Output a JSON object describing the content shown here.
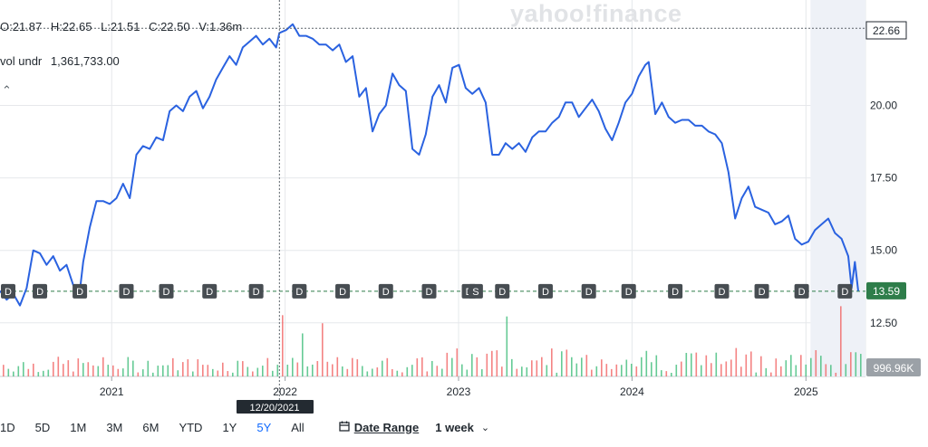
{
  "watermark": "yahoo!finance",
  "ohlc": {
    "open": "O:21.87",
    "high": "H:22.65",
    "low": "L:21.51",
    "close": "C:22.50",
    "volume": "V:1.36m"
  },
  "volume_label": {
    "name": "vol undr",
    "value": "1,361,733.00"
  },
  "collapse_icon": "caret-up-icon",
  "toolbar": {
    "ranges": [
      "1D",
      "5D",
      "1M",
      "3M",
      "6M",
      "YTD",
      "1Y",
      "5Y",
      "All"
    ],
    "active_range": "5Y",
    "date_range_label": "Date Range",
    "interval_label": "1 week",
    "colors": {
      "active": "#0f69ff"
    }
  },
  "crosshair": {
    "date_label": "12/20/2021",
    "price_label": "22.66",
    "price": 22.66,
    "date": "2021-12-20"
  },
  "current_price": {
    "label": "13.59",
    "value": 13.59
  },
  "volume_axis_label": "996.96K",
  "chart_data": {
    "type": "line",
    "y_ticks": [
      "12.50",
      "15.00",
      "17.50",
      "20.00"
    ],
    "y_tick_values": [
      12.5,
      15,
      17.5,
      20
    ],
    "ylim": [
      11.9,
      23.2
    ],
    "x_ticks": [
      "2021",
      "2022",
      "2023",
      "2024",
      "2025"
    ],
    "x_tick_dates": [
      "2021-01-01",
      "2022-01-01",
      "2023-01-01",
      "2024-01-01",
      "2025-01-01"
    ],
    "xlim": [
      "2020-05-11",
      "2025-04-21"
    ],
    "grid": true,
    "colors": {
      "line": "#2a62e0",
      "up": "#33b872",
      "down": "#f05a5a",
      "shade": "#eef1f7",
      "marker_bg": "#474d52",
      "price_badge": "#2e7d4a"
    },
    "series": [
      {
        "points": [
          [
            "2020-05-11",
            13.6
          ],
          [
            "2020-05-25",
            13.3
          ],
          [
            "2020-06-08",
            13.5
          ],
          [
            "2020-06-22",
            13.1
          ],
          [
            "2020-07-06",
            13.7
          ],
          [
            "2020-07-20",
            15.0
          ],
          [
            "2020-08-03",
            14.9
          ],
          [
            "2020-08-17",
            14.5
          ],
          [
            "2020-08-31",
            14.8
          ],
          [
            "2020-09-14",
            14.3
          ],
          [
            "2020-09-28",
            14.5
          ],
          [
            "2020-10-12",
            13.8
          ],
          [
            "2020-10-26",
            13.6
          ],
          [
            "2020-11-02",
            14.6
          ],
          [
            "2020-11-16",
            15.8
          ],
          [
            "2020-11-30",
            16.7
          ],
          [
            "2020-12-14",
            16.7
          ],
          [
            "2020-12-28",
            16.6
          ],
          [
            "2021-01-11",
            16.8
          ],
          [
            "2021-01-25",
            17.3
          ],
          [
            "2021-02-08",
            16.8
          ],
          [
            "2021-02-22",
            18.3
          ],
          [
            "2021-03-08",
            18.6
          ],
          [
            "2021-03-22",
            18.5
          ],
          [
            "2021-04-05",
            18.9
          ],
          [
            "2021-04-19",
            18.8
          ],
          [
            "2021-05-03",
            19.8
          ],
          [
            "2021-05-17",
            20.0
          ],
          [
            "2021-05-31",
            19.8
          ],
          [
            "2021-06-14",
            20.3
          ],
          [
            "2021-06-28",
            20.5
          ],
          [
            "2021-07-12",
            19.9
          ],
          [
            "2021-07-26",
            20.3
          ],
          [
            "2021-08-09",
            20.9
          ],
          [
            "2021-08-23",
            21.3
          ],
          [
            "2021-09-06",
            21.7
          ],
          [
            "2021-09-20",
            21.4
          ],
          [
            "2021-10-04",
            22.0
          ],
          [
            "2021-10-18",
            22.2
          ],
          [
            "2021-11-01",
            22.4
          ],
          [
            "2021-11-15",
            22.1
          ],
          [
            "2021-11-29",
            22.3
          ],
          [
            "2021-12-13",
            22.0
          ],
          [
            "2021-12-20",
            22.5
          ],
          [
            "2022-01-03",
            22.6
          ],
          [
            "2022-01-17",
            22.8
          ],
          [
            "2022-01-31",
            22.4
          ],
          [
            "2022-02-14",
            22.4
          ],
          [
            "2022-02-28",
            22.3
          ],
          [
            "2022-03-14",
            22.1
          ],
          [
            "2022-03-28",
            22.1
          ],
          [
            "2022-04-11",
            21.9
          ],
          [
            "2022-04-25",
            22.1
          ],
          [
            "2022-05-09",
            21.5
          ],
          [
            "2022-05-23",
            21.7
          ],
          [
            "2022-06-06",
            20.3
          ],
          [
            "2022-06-20",
            20.6
          ],
          [
            "2022-07-04",
            19.1
          ],
          [
            "2022-07-18",
            19.7
          ],
          [
            "2022-08-01",
            20.0
          ],
          [
            "2022-08-15",
            21.1
          ],
          [
            "2022-08-29",
            20.7
          ],
          [
            "2022-09-12",
            20.5
          ],
          [
            "2022-09-26",
            18.5
          ],
          [
            "2022-10-10",
            18.3
          ],
          [
            "2022-10-24",
            19.0
          ],
          [
            "2022-11-07",
            20.3
          ],
          [
            "2022-11-21",
            20.7
          ],
          [
            "2022-12-05",
            20.1
          ],
          [
            "2022-12-19",
            21.3
          ],
          [
            "2023-01-02",
            21.4
          ],
          [
            "2023-01-16",
            20.6
          ],
          [
            "2023-01-30",
            20.4
          ],
          [
            "2023-02-13",
            20.6
          ],
          [
            "2023-02-27",
            20.1
          ],
          [
            "2023-03-13",
            18.3
          ],
          [
            "2023-03-27",
            18.3
          ],
          [
            "2023-04-10",
            18.7
          ],
          [
            "2023-04-24",
            18.5
          ],
          [
            "2023-05-08",
            18.7
          ],
          [
            "2023-05-22",
            18.4
          ],
          [
            "2023-06-05",
            18.9
          ],
          [
            "2023-06-19",
            19.1
          ],
          [
            "2023-07-03",
            19.1
          ],
          [
            "2023-07-17",
            19.4
          ],
          [
            "2023-07-31",
            19.6
          ],
          [
            "2023-08-14",
            20.1
          ],
          [
            "2023-08-28",
            20.1
          ],
          [
            "2023-09-11",
            19.6
          ],
          [
            "2023-09-25",
            19.9
          ],
          [
            "2023-10-09",
            20.2
          ],
          [
            "2023-10-23",
            19.8
          ],
          [
            "2023-11-06",
            19.2
          ],
          [
            "2023-11-20",
            18.8
          ],
          [
            "2023-12-04",
            19.4
          ],
          [
            "2023-12-18",
            20.1
          ],
          [
            "2024-01-01",
            20.4
          ],
          [
            "2024-01-15",
            21.0
          ],
          [
            "2024-01-29",
            21.4
          ],
          [
            "2024-02-05",
            21.5
          ],
          [
            "2024-02-19",
            19.7
          ],
          [
            "2024-03-04",
            20.1
          ],
          [
            "2024-03-18",
            19.6
          ],
          [
            "2024-04-01",
            19.4
          ],
          [
            "2024-04-15",
            19.5
          ],
          [
            "2024-04-29",
            19.5
          ],
          [
            "2024-05-13",
            19.3
          ],
          [
            "2024-05-27",
            19.3
          ],
          [
            "2024-06-10",
            19.1
          ],
          [
            "2024-06-24",
            19.0
          ],
          [
            "2024-07-08",
            18.7
          ],
          [
            "2024-07-22",
            17.7
          ],
          [
            "2024-08-05",
            16.1
          ],
          [
            "2024-08-19",
            16.8
          ],
          [
            "2024-09-02",
            17.2
          ],
          [
            "2024-09-16",
            16.5
          ],
          [
            "2024-09-30",
            16.4
          ],
          [
            "2024-10-14",
            16.3
          ],
          [
            "2024-10-28",
            15.9
          ],
          [
            "2024-11-11",
            16.0
          ],
          [
            "2024-11-25",
            16.2
          ],
          [
            "2024-12-09",
            15.4
          ],
          [
            "2024-12-23",
            15.2
          ],
          [
            "2025-01-06",
            15.3
          ],
          [
            "2025-01-20",
            15.7
          ],
          [
            "2025-02-03",
            15.9
          ],
          [
            "2025-02-17",
            16.1
          ],
          [
            "2025-03-03",
            15.6
          ],
          [
            "2025-03-17",
            15.4
          ],
          [
            "2025-03-31",
            14.8
          ],
          [
            "2025-04-07",
            13.7
          ],
          [
            "2025-04-14",
            14.6
          ],
          [
            "2025-04-21",
            13.6
          ]
        ]
      }
    ],
    "event_markers": [
      {
        "date": "2020-05-11",
        "label": "D"
      },
      {
        "date": "2020-08-03",
        "label": "D"
      },
      {
        "date": "2020-10-26",
        "label": "D"
      },
      {
        "date": "2021-02-01",
        "label": "D"
      },
      {
        "date": "2021-04-26",
        "label": "D"
      },
      {
        "date": "2021-07-26",
        "label": "D"
      },
      {
        "date": "2021-11-01",
        "label": "D"
      },
      {
        "date": "2022-01-31",
        "label": "D"
      },
      {
        "date": "2022-05-02",
        "label": "D"
      },
      {
        "date": "2022-08-01",
        "label": "D"
      },
      {
        "date": "2022-10-31",
        "label": "D"
      },
      {
        "date": "2023-01-23",
        "label": "D"
      },
      {
        "date": "2023-02-06",
        "label": "S"
      },
      {
        "date": "2023-04-03",
        "label": "D"
      },
      {
        "date": "2023-07-03",
        "label": "D"
      },
      {
        "date": "2023-10-02",
        "label": "D"
      },
      {
        "date": "2023-12-25",
        "label": "D"
      },
      {
        "date": "2024-04-01",
        "label": "D"
      },
      {
        "date": "2024-07-08",
        "label": "D"
      },
      {
        "date": "2024-09-30",
        "label": "D"
      },
      {
        "date": "2024-12-23",
        "label": "D"
      },
      {
        "date": "2025-03-24",
        "label": "D"
      }
    ]
  }
}
